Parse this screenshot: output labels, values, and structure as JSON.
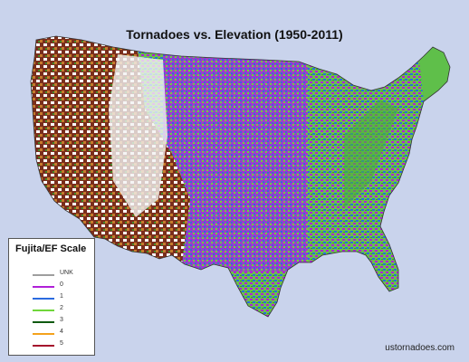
{
  "title": "Tornadoes vs. Elevation (1950-2011)",
  "legend": {
    "title": "Fujita/EF Scale",
    "items": [
      {
        "label": "UNK",
        "color": "#9e9e9e"
      },
      {
        "label": "0",
        "color": "#b020d8"
      },
      {
        "label": "1",
        "color": "#2a6be0"
      },
      {
        "label": "2",
        "color": "#6fd63a"
      },
      {
        "label": "3",
        "color": "#0f5a10"
      },
      {
        "label": "4",
        "color": "#f4a21c"
      },
      {
        "label": "5",
        "color": "#a5122c"
      }
    ]
  },
  "credit": "ustornadoes.com",
  "colors": {
    "ocean": "#c9d3ec",
    "land_low": "#5fbf4a",
    "land_high": "#7a2e1c",
    "mountain_snow": "#ffffff",
    "mountain_brown": "#5b1d11"
  }
}
